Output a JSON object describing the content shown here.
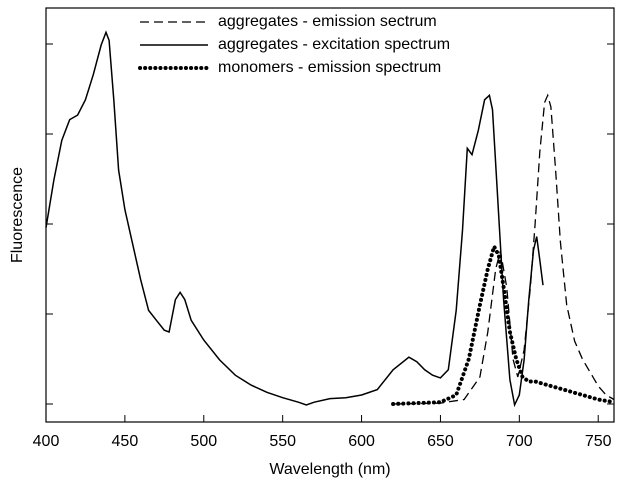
{
  "chart_data": {
    "type": "line",
    "xlabel": "Wavelength (nm)",
    "ylabel": "Fluorescence",
    "xlim": [
      400,
      760
    ],
    "xticks": [
      400,
      450,
      500,
      550,
      600,
      650,
      700,
      750
    ],
    "ylim": [
      -0.2,
      4.4
    ],
    "yticks": [
      0,
      1,
      2,
      3,
      4
    ],
    "ytick_labels": false,
    "legend": "top",
    "series": [
      {
        "name": "aggregates - emission sectrum",
        "color": "#000000",
        "dash": "dashed",
        "x": [
          620,
          650,
          665,
          675,
          680,
          685,
          688,
          692,
          696,
          699,
          703,
          707,
          710,
          713,
          716,
          718,
          720,
          723,
          726,
          730,
          735,
          740,
          745,
          750,
          755,
          760
        ],
        "values": [
          0,
          0.01,
          0.05,
          0.3,
          0.8,
          1.5,
          1.7,
          1.3,
          0.5,
          0.3,
          0.6,
          1.3,
          2.0,
          2.8,
          3.35,
          3.43,
          3.3,
          2.6,
          1.8,
          1.1,
          0.7,
          0.5,
          0.35,
          0.2,
          0.1,
          0.05
        ]
      },
      {
        "name": "aggregates - excitation spectrum",
        "color": "#000000",
        "dash": "solid",
        "x": [
          400,
          405,
          410,
          415,
          420,
          425,
          430,
          435,
          438,
          440,
          443,
          446,
          450,
          455,
          460,
          465,
          470,
          475,
          478,
          482,
          485,
          488,
          492,
          500,
          510,
          520,
          530,
          540,
          550,
          560,
          565,
          570,
          580,
          590,
          600,
          610,
          620,
          630,
          635,
          640,
          645,
          650,
          655,
          660,
          664,
          667,
          670,
          674,
          678,
          681,
          683,
          686,
          690,
          694,
          697,
          700,
          703,
          706,
          709,
          711,
          713,
          715
        ],
        "values": [
          1.96,
          2.49,
          2.93,
          3.16,
          3.21,
          3.38,
          3.66,
          3.99,
          4.13,
          4.04,
          3.38,
          2.6,
          2.16,
          1.77,
          1.38,
          1.04,
          0.93,
          0.82,
          0.8,
          1.16,
          1.24,
          1.16,
          0.93,
          0.71,
          0.49,
          0.32,
          0.21,
          0.13,
          0.07,
          0.02,
          -0.01,
          0.02,
          0.06,
          0.07,
          0.1,
          0.16,
          0.38,
          0.52,
          0.47,
          0.38,
          0.32,
          0.29,
          0.38,
          1.04,
          1.93,
          2.84,
          2.77,
          3.04,
          3.38,
          3.43,
          3.27,
          2.38,
          1.16,
          0.27,
          -0.01,
          0.1,
          0.49,
          1.16,
          1.71,
          1.86,
          1.6,
          1.32
        ]
      },
      {
        "name": "monomers - emission spectrum",
        "color": "#000000",
        "dash": "dotted",
        "x": [
          620,
          650,
          660,
          668,
          675,
          680,
          684,
          687,
          690,
          694,
          698,
          702,
          706,
          710,
          720,
          730,
          740,
          750,
          760
        ],
        "values": [
          0,
          0.02,
          0.1,
          0.5,
          1.1,
          1.5,
          1.75,
          1.65,
          1.3,
          0.8,
          0.5,
          0.3,
          0.25,
          0.25,
          0.2,
          0.15,
          0.1,
          0.05,
          0.02
        ]
      }
    ]
  }
}
